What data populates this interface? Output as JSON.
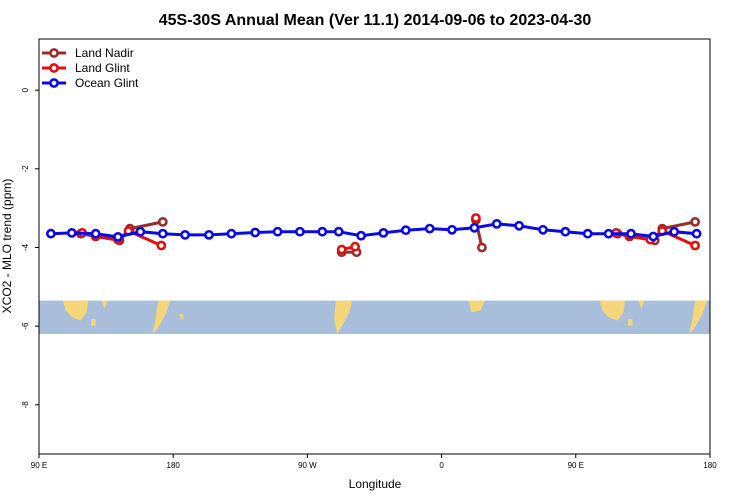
{
  "chart_data": {
    "type": "line",
    "title": "45S-30S Annual Mean (Ver 11.1)   2014-09-06 to 2023-04-30",
    "xlabel": "Longitude",
    "ylabel": "XCO2 - MLO trend (ppm)",
    "xlim": [
      90,
      540
    ],
    "ylim": [
      -9.25,
      1.3
    ],
    "x_ticks": [
      {
        "value": 90,
        "label": "90 E"
      },
      {
        "value": 180,
        "label": "180"
      },
      {
        "value": 270,
        "label": "90 W"
      },
      {
        "value": 360,
        "label": "0"
      },
      {
        "value": 450,
        "label": "90 E"
      },
      {
        "value": 540,
        "label": "180"
      }
    ],
    "y_ticks": [
      {
        "value": 0,
        "label": "0"
      },
      {
        "value": -2,
        "label": "-2"
      },
      {
        "value": -4,
        "label": "-4"
      },
      {
        "value": -6,
        "label": "-6"
      },
      {
        "value": -8,
        "label": "-8"
      }
    ],
    "map_strip": {
      "lat_range": "45S-30S",
      "y_top": -5.35,
      "y_bottom": -6.2,
      "ocean_color": "#A8BEDB",
      "land_color": "#F5D77A"
    },
    "legend_position": "top-left",
    "series": [
      {
        "name": "Land Nadir",
        "color": "#9B2C2C",
        "segments": [
          {
            "x": [
              118,
              128,
              144,
              151,
              173
            ],
            "y": [
              -3.65,
              -3.72,
              -3.82,
              -3.52,
              -3.35
            ]
          },
          {
            "x": [
              293,
              303
            ],
            "y": [
              -4.12,
              -4.12
            ]
          },
          {
            "x": [
              383,
              387
            ],
            "y": [
              -3.3,
              -4.0
            ]
          },
          {
            "x": [
              478,
              486,
              503,
              508,
              530
            ],
            "y": [
              -3.65,
              -3.72,
              -3.82,
              -3.52,
              -3.35
            ]
          }
        ]
      },
      {
        "name": "Land Glint",
        "color": "#E01010",
        "segments": [
          {
            "x": [
              119,
              128,
              143,
              150,
              172
            ],
            "y": [
              -3.63,
              -3.7,
              -3.8,
              -3.58,
              -3.95
            ]
          },
          {
            "x": [
              293,
              302
            ],
            "y": [
              -4.05,
              -3.98
            ]
          },
          {
            "x": [
              383
            ],
            "y": [
              -3.25
            ]
          },
          {
            "x": [
              477,
              486,
              500,
              508,
              530
            ],
            "y": [
              -3.63,
              -3.7,
              -3.8,
              -3.58,
              -3.95
            ]
          }
        ]
      },
      {
        "name": "Ocean Glint",
        "color": "#0A0AE6",
        "segments": [
          {
            "x": [
              98,
              112,
              128,
              143,
              158,
              173,
              188,
              204,
              219,
              235,
              250,
              265,
              280,
              291,
              306,
              321,
              336,
              352,
              367,
              382,
              397,
              412,
              428,
              443,
              458,
              472,
              487,
              502,
              516,
              531
            ],
            "y": [
              -3.65,
              -3.63,
              -3.65,
              -3.73,
              -3.6,
              -3.65,
              -3.68,
              -3.68,
              -3.65,
              -3.62,
              -3.6,
              -3.6,
              -3.6,
              -3.6,
              -3.7,
              -3.63,
              -3.56,
              -3.52,
              -3.55,
              -3.5,
              -3.4,
              -3.45,
              -3.55,
              -3.6,
              -3.65,
              -3.65,
              -3.65,
              -3.72,
              -3.6,
              -3.65
            ]
          }
        ]
      }
    ]
  }
}
